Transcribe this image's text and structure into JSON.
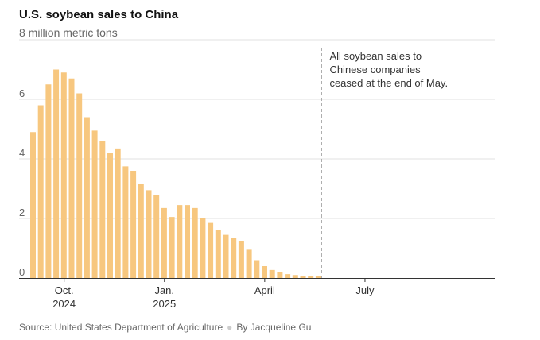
{
  "chart_data": {
    "type": "bar",
    "title": "U.S. soybean sales to China",
    "ylabel": "8 million metric tons",
    "ylim": [
      0,
      8
    ],
    "yticks": [
      0,
      2,
      4,
      6
    ],
    "xlim_weeks": [
      0,
      60
    ],
    "x_tick_labels": [
      {
        "week": 4.5,
        "line1": "Oct.",
        "line2": "2024"
      },
      {
        "week": 17.5,
        "line1": "Jan.",
        "line2": "2025"
      },
      {
        "week": 30.5,
        "line1": "April",
        "line2": ""
      },
      {
        "week": 43.5,
        "line1": "July",
        "line2": ""
      }
    ],
    "values": [
      4.9,
      5.8,
      6.5,
      7.0,
      6.9,
      6.7,
      6.2,
      5.4,
      4.95,
      4.6,
      4.2,
      4.35,
      3.75,
      3.6,
      3.15,
      2.95,
      2.8,
      2.35,
      2.05,
      2.45,
      2.45,
      2.35,
      2.0,
      1.85,
      1.6,
      1.45,
      1.35,
      1.25,
      0.95,
      0.6,
      0.4,
      0.27,
      0.2,
      0.13,
      0.1,
      0.08,
      0.07,
      0.06
    ],
    "bar_color": "#F7C77F",
    "annotation": {
      "week": 38.5,
      "lines": [
        "All soybean sales to",
        "Chinese companies",
        "ceased at the end of May."
      ]
    },
    "grid": true
  },
  "footer": {
    "source": "Source: United States Department of Agriculture",
    "byline": "By Jacqueline Gu"
  }
}
